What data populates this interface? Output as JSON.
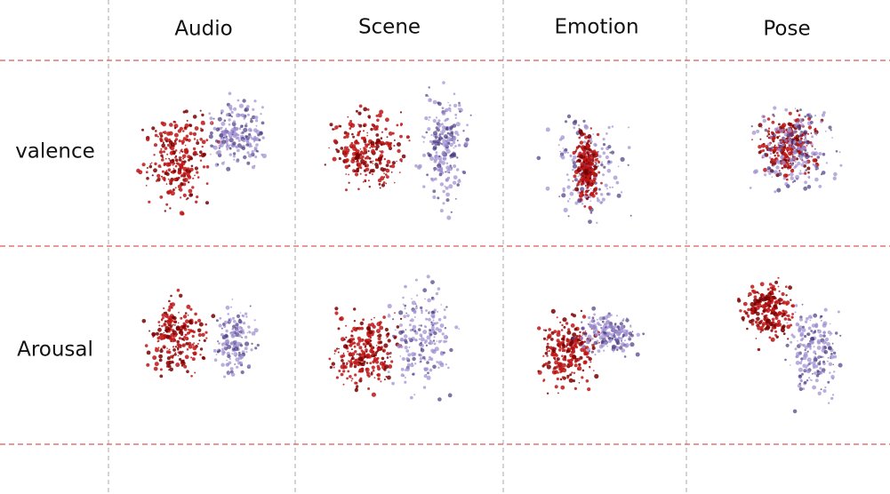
{
  "columns": [
    "Audio",
    "Scene",
    "Emotion",
    "Pose"
  ],
  "rows": [
    "valence",
    "Arousal"
  ]
}
